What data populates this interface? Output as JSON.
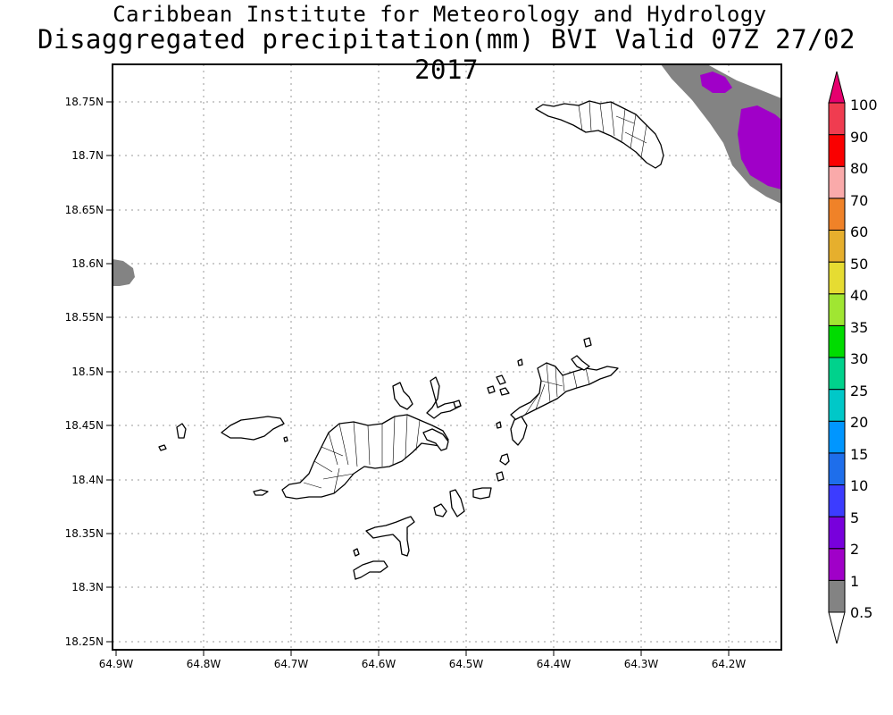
{
  "header": {
    "institute": "Caribbean Institute for Meteorology and Hydrology",
    "product_title": "Disaggregated precipitation(mm) BVI Valid 07Z 27/02 2017"
  },
  "map": {
    "region": "BVI",
    "variable": "Disaggregated precipitation",
    "units": "mm",
    "valid_time": "07Z 27/02 2017",
    "lon_ticks": [
      "64.9W",
      "64.8W",
      "64.7W",
      "64.6W",
      "64.5W",
      "64.4W",
      "64.3W",
      "64.2W"
    ],
    "lat_ticks": [
      "18.75N",
      "18.7N",
      "18.65N",
      "18.6N",
      "18.55N",
      "18.5N",
      "18.45N",
      "18.4N",
      "18.35N",
      "18.3N",
      "18.25N"
    ],
    "gridlines": "dotted",
    "land_style": "white with black outlines",
    "colors": {
      "frame": "#000000",
      "grid": "#9a9a9a",
      "precip_gray": "#838383",
      "precip_purple": "#a000c8"
    },
    "features": [
      {
        "name": "Anegada",
        "shown": "outline"
      },
      {
        "name": "Tortola",
        "shown": "outline"
      },
      {
        "name": "Virgin Gorda",
        "shown": "outline"
      },
      {
        "name": "Jost Van Dyke",
        "shown": "outline"
      },
      {
        "name": "Norman Island area",
        "shown": "outline"
      }
    ]
  },
  "colorbar": {
    "levels": [
      "0.5",
      "1",
      "2",
      "5",
      "10",
      "15",
      "20",
      "25",
      "30",
      "35",
      "40",
      "50",
      "60",
      "70",
      "80",
      "90",
      "100"
    ],
    "colors": [
      "#ffffff",
      "#838383",
      "#a000c8",
      "#7800dc",
      "#3c3cff",
      "#1e6eeb",
      "#0096ff",
      "#00c8c8",
      "#00d28c",
      "#00dc00",
      "#a0e632",
      "#e6dc32",
      "#e6af2d",
      "#f08228",
      "#faaaaa",
      "#fa0000",
      "#f03c50",
      "#e6006e"
    ]
  }
}
